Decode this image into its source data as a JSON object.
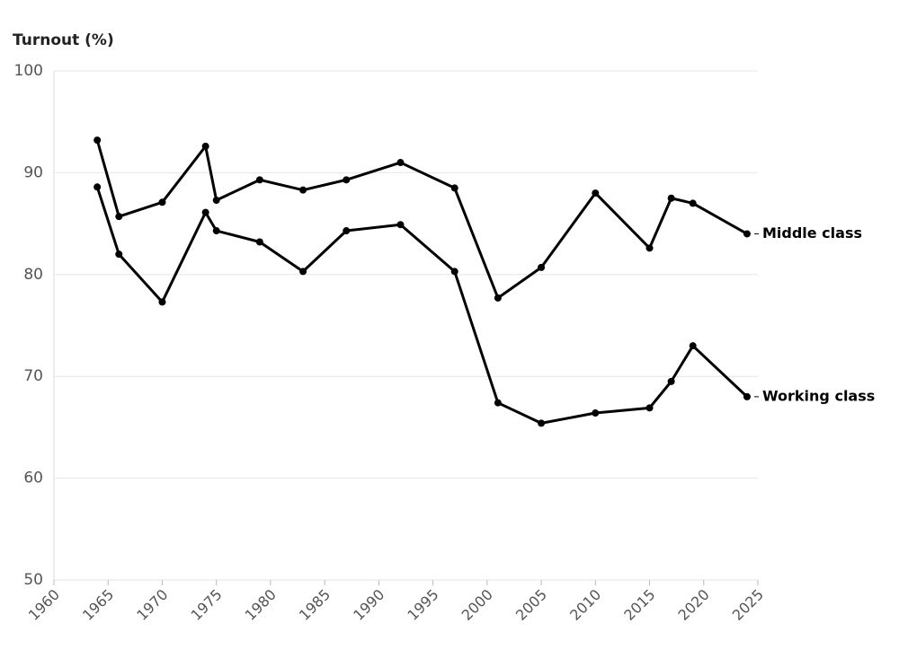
{
  "chart_data": {
    "type": "line",
    "y_label": "Turnout (%)",
    "x": [
      1964,
      1966,
      1970,
      1974,
      1975,
      1979,
      1983,
      1987,
      1992,
      1997,
      2001,
      2005,
      2010,
      2015,
      2017,
      2019,
      2024
    ],
    "series": [
      {
        "name": "Middle class",
        "color": "#000000",
        "values": [
          93.2,
          85.7,
          87.1,
          92.6,
          87.3,
          89.3,
          88.3,
          89.3,
          91.0,
          88.5,
          77.7,
          80.7,
          88.0,
          82.6,
          87.5,
          87.0,
          84.0
        ]
      },
      {
        "name": "Working class",
        "color": "#000000",
        "values": [
          88.6,
          82.0,
          77.3,
          86.1,
          84.3,
          83.2,
          80.3,
          84.3,
          84.9,
          80.3,
          67.4,
          65.4,
          66.4,
          66.9,
          69.5,
          73.0,
          68.0
        ]
      }
    ],
    "xlim": [
      1960,
      2025
    ],
    "xticks": [
      1960,
      1965,
      1970,
      1975,
      1980,
      1985,
      1990,
      1995,
      2000,
      2005,
      2010,
      2015,
      2020,
      2025
    ],
    "ylim": [
      50,
      100
    ],
    "yticks": [
      50,
      60,
      70,
      80,
      90,
      100
    ],
    "grid": true
  }
}
